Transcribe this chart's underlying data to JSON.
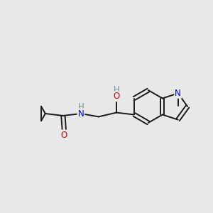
{
  "background_color": "#e8e8e8",
  "bond_color": "#1a1a1a",
  "atom_colors": {
    "O": "#dd0000",
    "N": "#0000cc",
    "H": "#5a9a9a",
    "C": "#1a1a1a"
  },
  "figsize": [
    3.0,
    3.0
  ],
  "dpi": 100,
  "bond_lw": 1.4,
  "fontsize": 8.5
}
